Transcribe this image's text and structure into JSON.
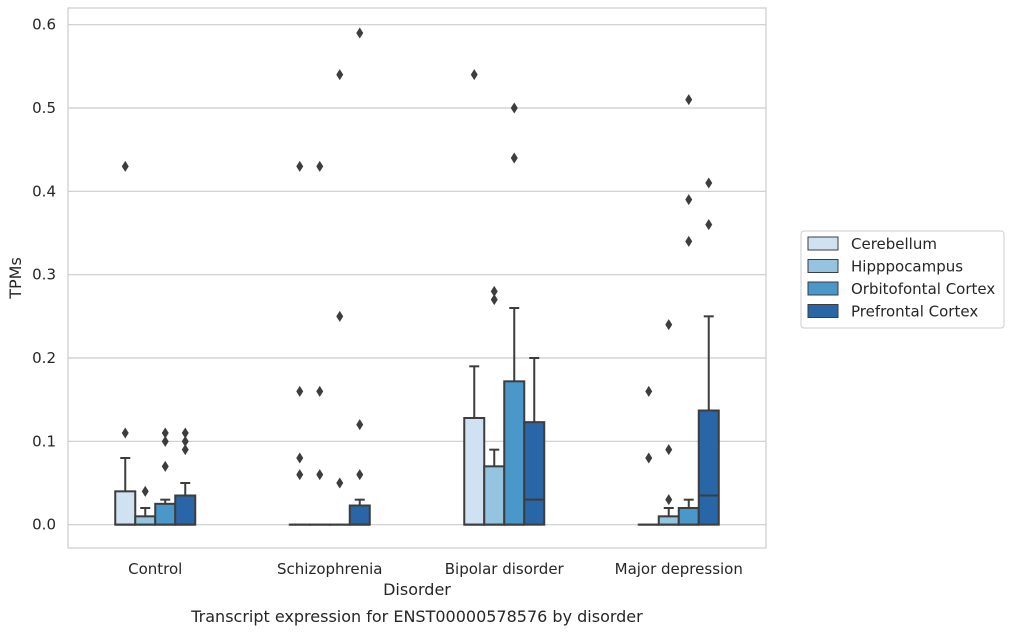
{
  "chart_data": {
    "type": "box",
    "caption": "Transcript expression for ENST00000578576 by disorder",
    "xlabel": "Disorder",
    "ylabel": "TPMs",
    "ylim": [
      -0.028,
      0.62
    ],
    "yticks": [
      "0.0",
      "0.1",
      "0.2",
      "0.3",
      "0.4",
      "0.5",
      "0.6"
    ],
    "grid": true,
    "legend_position": "right",
    "categories": [
      "Control",
      "Schizophrenia",
      "Bipolar disorder",
      "Major depression"
    ],
    "series": [
      {
        "name": "Cerebellum",
        "color": "#d0e1f2",
        "boxes": [
          {
            "min": 0,
            "q1": 0,
            "median": 0,
            "q3": 0.04,
            "max": 0.08,
            "outliers": [
              0.11,
              0.43
            ]
          },
          {
            "min": 0,
            "q1": 0,
            "median": 0,
            "q3": 0,
            "max": 0,
            "outliers": [
              0.08,
              0.16,
              0.43,
              0.06
            ]
          },
          {
            "min": 0,
            "q1": 0,
            "median": 0,
            "q3": 0.128,
            "max": 0.19,
            "outliers": [
              0.54
            ]
          },
          {
            "min": 0,
            "q1": 0,
            "median": 0,
            "q3": 0,
            "max": 0,
            "outliers": [
              0.08,
              0.16
            ]
          }
        ]
      },
      {
        "name": "Hipppocampus",
        "color": "#94c4df",
        "boxes": [
          {
            "min": 0,
            "q1": 0,
            "median": 0,
            "q3": 0.01,
            "max": 0.02,
            "outliers": [
              0.04
            ]
          },
          {
            "min": 0,
            "q1": 0,
            "median": 0,
            "q3": 0,
            "max": 0,
            "outliers": [
              0.06,
              0.16,
              0.43
            ]
          },
          {
            "min": 0,
            "q1": 0,
            "median": 0,
            "q3": 0.07,
            "max": 0.09,
            "outliers": [
              0.27,
              0.28
            ]
          },
          {
            "min": 0,
            "q1": 0,
            "median": 0,
            "q3": 0.01,
            "max": 0.02,
            "outliers": [
              0.03,
              0.09,
              0.24
            ]
          }
        ]
      },
      {
        "name": "Orbitofontal Cortex",
        "color": "#4a98c9",
        "boxes": [
          {
            "min": 0,
            "q1": 0,
            "median": 0,
            "q3": 0.025,
            "max": 0.03,
            "outliers": [
              0.07,
              0.1,
              0.11
            ]
          },
          {
            "min": 0,
            "q1": 0,
            "median": 0,
            "q3": 0,
            "max": 0,
            "outliers": [
              0.05,
              0.25,
              0.54
            ]
          },
          {
            "min": 0,
            "q1": 0,
            "median": 0,
            "q3": 0.172,
            "max": 0.26,
            "outliers": [
              0.44,
              0.5
            ]
          },
          {
            "min": 0,
            "q1": 0,
            "median": 0,
            "q3": 0.02,
            "max": 0.03,
            "outliers": [
              0.34,
              0.39,
              0.51
            ]
          }
        ]
      },
      {
        "name": "Prefrontal Cortex",
        "color": "#2866a8",
        "boxes": [
          {
            "min": 0,
            "q1": 0,
            "median": 0,
            "q3": 0.035,
            "max": 0.05,
            "outliers": [
              0.09,
              0.1,
              0.11
            ]
          },
          {
            "min": 0,
            "q1": 0,
            "median": 0,
            "q3": 0.023,
            "max": 0.03,
            "outliers": [
              0.06,
              0.12,
              0.59
            ]
          },
          {
            "min": 0,
            "q1": 0,
            "median": 0.03,
            "q3": 0.123,
            "max": 0.2,
            "outliers": []
          },
          {
            "min": 0,
            "q1": 0,
            "median": 0.035,
            "q3": 0.137,
            "max": 0.25,
            "outliers": [
              0.36,
              0.41
            ]
          }
        ]
      }
    ]
  }
}
